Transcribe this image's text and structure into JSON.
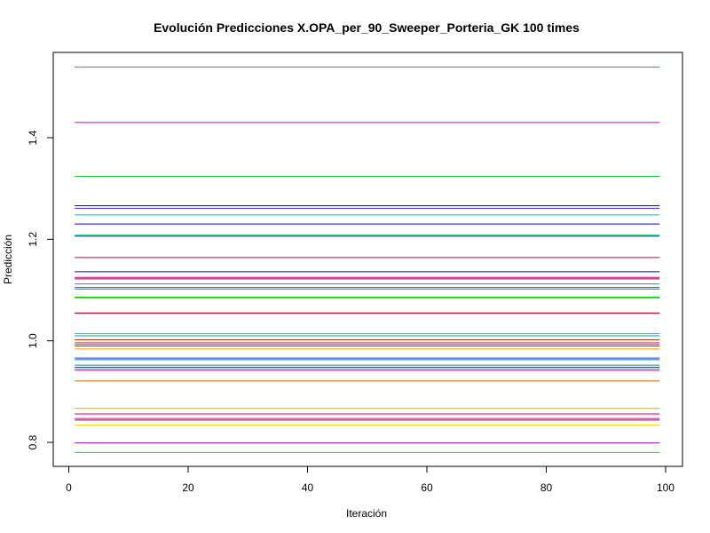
{
  "chart_data": {
    "type": "line",
    "title": "Evolución Predicciones X.OPA_per_90_Sweeper_Porteria_GK 100 times",
    "xlabel": "Iteración",
    "ylabel": "Predicción",
    "xlim": [
      0,
      100
    ],
    "ylim": [
      0.77,
      1.56
    ],
    "x_range": [
      1,
      99
    ],
    "xticks": [
      0,
      20,
      40,
      60,
      80,
      100
    ],
    "xtick_labels": [
      "0",
      "20",
      "40",
      "60",
      "80",
      "100"
    ],
    "yticks": [
      0.8,
      1.0,
      1.2,
      1.4
    ],
    "ytick_labels": [
      "0.8",
      "1.0",
      "1.2",
      "1.4"
    ],
    "grid": false,
    "legend": "none",
    "series": [
      {
        "value": 1.539,
        "color": "#00a0e0"
      },
      {
        "value": 1.43,
        "color": "#cc00cc"
      },
      {
        "value": 1.324,
        "color": "#00cc33"
      },
      {
        "value": 1.266,
        "color": "#0000cc"
      },
      {
        "value": 1.261,
        "color": "#3333ff"
      },
      {
        "value": 1.248,
        "color": "#00cc99"
      },
      {
        "value": 1.23,
        "color": "#0000cc"
      },
      {
        "value": 1.208,
        "color": "#00cc66"
      },
      {
        "value": 1.206,
        "color": "#0033cc"
      },
      {
        "value": 1.164,
        "color": "#cc0044"
      },
      {
        "value": 1.136,
        "color": "#0000cc"
      },
      {
        "value": 1.125,
        "color": "#cc0066"
      },
      {
        "value": 1.122,
        "color": "#660044"
      },
      {
        "value": 1.112,
        "color": "#00aa88"
      },
      {
        "value": 1.105,
        "color": "#0066cc"
      },
      {
        "value": 1.102,
        "color": "#009999"
      },
      {
        "value": 1.086,
        "color": "#00cc00"
      },
      {
        "value": 1.084,
        "color": "#66cc00"
      },
      {
        "value": 1.055,
        "color": "#556600"
      },
      {
        "value": 1.054,
        "color": "#cc0066"
      },
      {
        "value": 1.014,
        "color": "#00cc99"
      },
      {
        "value": 1.01,
        "color": "#0099cc"
      },
      {
        "value": 1.002,
        "color": "#cc3300"
      },
      {
        "value": 0.997,
        "color": "#cc9900"
      },
      {
        "value": 0.994,
        "color": "#cc0066"
      },
      {
        "value": 0.99,
        "color": "#cc0000"
      },
      {
        "value": 0.984,
        "color": "#ff9900"
      },
      {
        "value": 0.966,
        "color": "#0044cc"
      },
      {
        "value": 0.963,
        "color": "#0066ff"
      },
      {
        "value": 0.952,
        "color": "#009966"
      },
      {
        "value": 0.948,
        "color": "#3333cc"
      },
      {
        "value": 0.945,
        "color": "#00cccc"
      },
      {
        "value": 0.942,
        "color": "#cc0099"
      },
      {
        "value": 0.921,
        "color": "#cc6600"
      },
      {
        "value": 0.867,
        "color": "#ff9900"
      },
      {
        "value": 0.856,
        "color": "#cc0066"
      },
      {
        "value": 0.847,
        "color": "#cc00cc"
      },
      {
        "value": 0.844,
        "color": "#990044"
      },
      {
        "value": 0.834,
        "color": "#ffcc00"
      },
      {
        "value": 0.799,
        "color": "#9900cc"
      },
      {
        "value": 0.78,
        "color": "#00cc66"
      }
    ]
  }
}
